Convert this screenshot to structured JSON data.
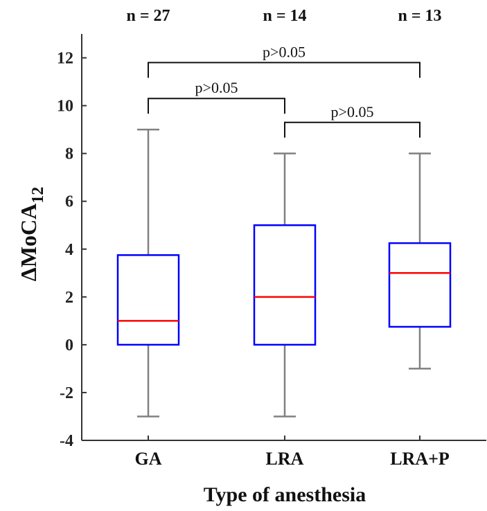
{
  "chart_data": {
    "type": "boxplot",
    "categories": [
      "GA",
      "LRA",
      "LRA+P"
    ],
    "sample_sizes": [
      "n = 27",
      "n = 14",
      "n = 13"
    ],
    "boxes": [
      {
        "category": "GA",
        "whisker_low": -3,
        "q1": 0,
        "median": 1,
        "q3": 3.75,
        "whisker_high": 9
      },
      {
        "category": "LRA",
        "whisker_low": -3,
        "q1": 0,
        "median": 2,
        "q3": 5,
        "whisker_high": 8
      },
      {
        "category": "LRA+P",
        "whisker_low": -1,
        "q1": 0.75,
        "median": 3,
        "q3": 4.25,
        "whisker_high": 8
      }
    ],
    "yticks": [
      -4,
      -2,
      0,
      2,
      4,
      6,
      8,
      10,
      12
    ],
    "ylim": [
      -4,
      13
    ],
    "ylabel_main": "ΔMoCA",
    "ylabel_sub": "12",
    "xlabel": "Type of anesthesia",
    "comparisons": [
      {
        "from": "GA",
        "to": "LRA+P",
        "label": "p>0.05",
        "y": 11.8
      },
      {
        "from": "GA",
        "to": "LRA",
        "label": "p>0.05",
        "y": 10.3
      },
      {
        "from": "LRA",
        "to": "LRA+P",
        "label": "p>0.05",
        "y": 9.3
      }
    ],
    "colors": {
      "box": "#0000ff",
      "median": "#ff0000",
      "whisker": "#808080",
      "axis": "#333333"
    }
  }
}
